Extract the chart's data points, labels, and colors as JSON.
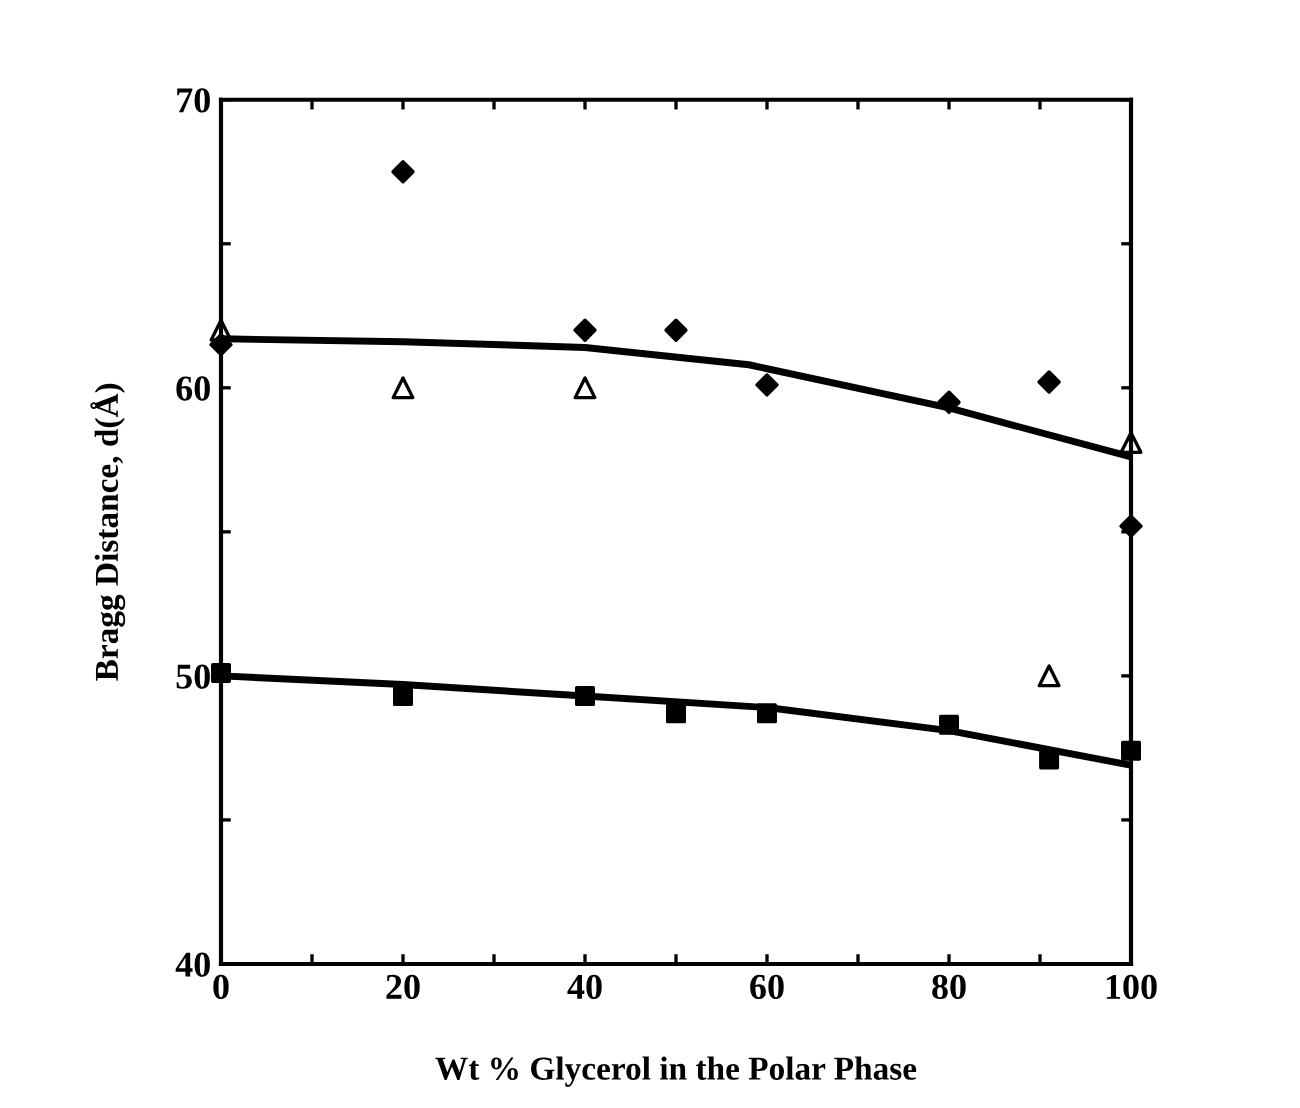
{
  "chart_data": {
    "type": "scatter",
    "xlabel": "Wt % Glycerol in the Polar Phase",
    "ylabel": "Bragg Distance, d(Å)",
    "xlim": [
      0,
      100
    ],
    "ylim": [
      40,
      70
    ],
    "xticks": [
      0,
      {
        "value": 10,
        "label": null
      },
      20,
      {
        "value": 30,
        "label": null
      },
      40,
      {
        "value": 50,
        "label": null
      },
      60,
      {
        "value": 70,
        "label": null
      },
      80,
      {
        "value": 90,
        "label": null
      },
      100
    ],
    "yticks": [
      40,
      {
        "value": 45,
        "label": null
      },
      50,
      {
        "value": 55,
        "label": null
      },
      60,
      {
        "value": 65,
        "label": null
      },
      70
    ],
    "grid": false,
    "legend": false,
    "series": [
      {
        "marker": "diamond",
        "color": "#000000",
        "x": [
          0,
          20,
          40,
          50,
          60,
          80,
          91,
          100
        ],
        "values": [
          61.5,
          67.5,
          62,
          62,
          60.1,
          59.5,
          60.2,
          55.2
        ]
      },
      {
        "marker": "triangle",
        "color": "#000000",
        "x": [
          0,
          20,
          40,
          91,
          100
        ],
        "values": [
          62,
          60,
          60,
          50,
          58.1
        ]
      },
      {
        "marker": "square",
        "color": "#000000",
        "x": [
          0,
          20,
          40,
          50,
          60,
          80,
          91,
          100
        ],
        "values": [
          50.1,
          49.3,
          49.3,
          48.7,
          48.7,
          48.3,
          47.1,
          47.4
        ]
      },
      {
        "type": "line",
        "marker": "none",
        "color": "#000000",
        "x": [
          0,
          20,
          40,
          58,
          80,
          100
        ],
        "values": [
          61.7,
          61.6,
          61.4,
          60.8,
          59.3,
          57.6
        ]
      },
      {
        "type": "line",
        "marker": "none",
        "color": "#000000",
        "x": [
          0,
          20,
          40,
          60,
          80,
          100
        ],
        "values": [
          50,
          49.7,
          49.3,
          48.9,
          48.1,
          46.9
        ]
      }
    ]
  }
}
